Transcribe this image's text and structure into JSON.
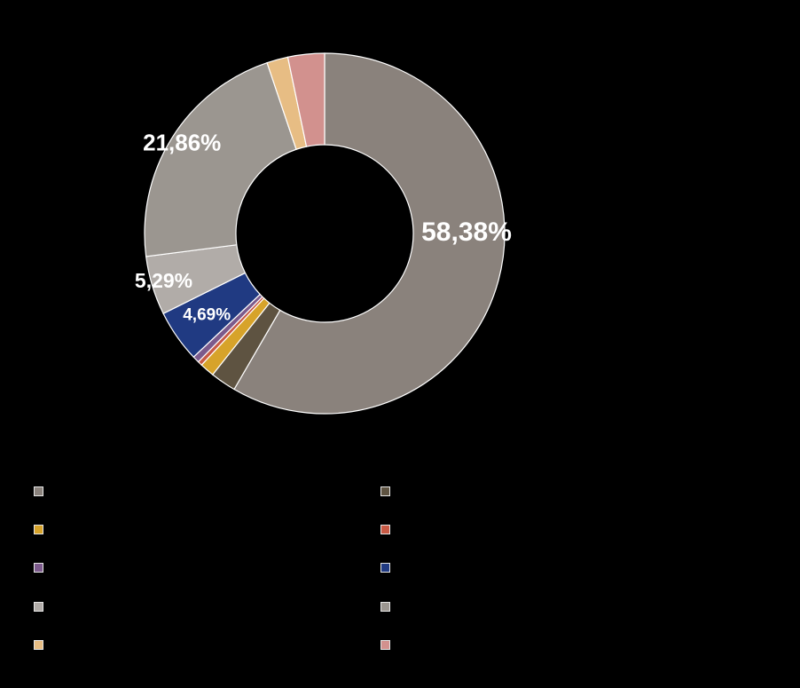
{
  "chart_data": {
    "type": "pie",
    "variant": "donut",
    "title": "",
    "slices": [
      {
        "label": "",
        "value": 58.38,
        "value_label": "58,38%",
        "color": "#8a827c",
        "label_color": "#ffffff"
      },
      {
        "label": "",
        "value": 2.3,
        "value_label": "",
        "color": "#5e5341",
        "label_color": "#ffffff"
      },
      {
        "label": "",
        "value": 1.3,
        "value_label": "",
        "color": "#d7a32a",
        "label_color": "#ffffff"
      },
      {
        "label": "",
        "value": 0.4,
        "value_label": "",
        "color": "#c85a45",
        "label_color": "#ffffff"
      },
      {
        "label": "",
        "value": 0.6,
        "value_label": "",
        "color": "#7c5a8c",
        "label_color": "#ffffff"
      },
      {
        "label": "",
        "value": 4.69,
        "value_label": "4,69%",
        "color": "#203a82",
        "label_color": "#ffffff"
      },
      {
        "label": "",
        "value": 5.29,
        "value_label": "5,29%",
        "color": "#b1aca8",
        "label_color": "#ffffff"
      },
      {
        "label": "",
        "value": 21.86,
        "value_label": "21,86%",
        "color": "#9b9690",
        "label_color": "#ffffff"
      },
      {
        "label": "",
        "value": 1.9,
        "value_label": "",
        "color": "#e7bd84",
        "label_color": "#ffffff"
      },
      {
        "label": "",
        "value": 3.28,
        "value_label": "",
        "color": "#d2918e",
        "label_color": "#ffffff"
      }
    ],
    "legend_placement": "bottom",
    "legend_columns": 2
  }
}
